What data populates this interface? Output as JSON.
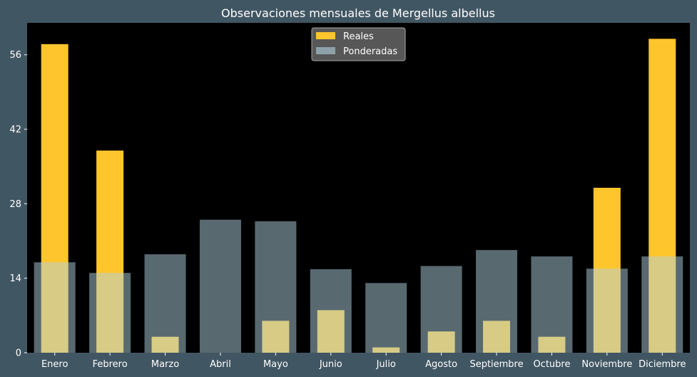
{
  "chart_data": {
    "type": "bar",
    "title": "Observaciones mensuales de Mergellus albellus",
    "xlabel": "",
    "ylabel": "",
    "categories": [
      "Enero",
      "Febrero",
      "Marzo",
      "Abril",
      "Mayo",
      "Junio",
      "Julio",
      "Agosto",
      "Septiembre",
      "Octubre",
      "Noviembre",
      "Diciembre"
    ],
    "series": [
      {
        "name": "Reales",
        "values": [
          58,
          38,
          3,
          0,
          6,
          8,
          1,
          4,
          6,
          3,
          31,
          59
        ]
      },
      {
        "name": "Ponderadas",
        "values": [
          17,
          15,
          18.5,
          25,
          24.7,
          15.7,
          13.1,
          16.3,
          19.3,
          18.1,
          15.8,
          18.1
        ]
      }
    ],
    "ylim": [
      0,
      62
    ],
    "yticks": [
      0,
      14,
      28,
      42,
      56
    ],
    "grid": false,
    "legend": "top-center",
    "colors": {
      "page_background": "#415663",
      "plot_background": "#000000",
      "reales": "#ffc52d",
      "ponderadas": "#b0d2e0",
      "text": "#ffffff",
      "legend_box": "#575757"
    }
  }
}
